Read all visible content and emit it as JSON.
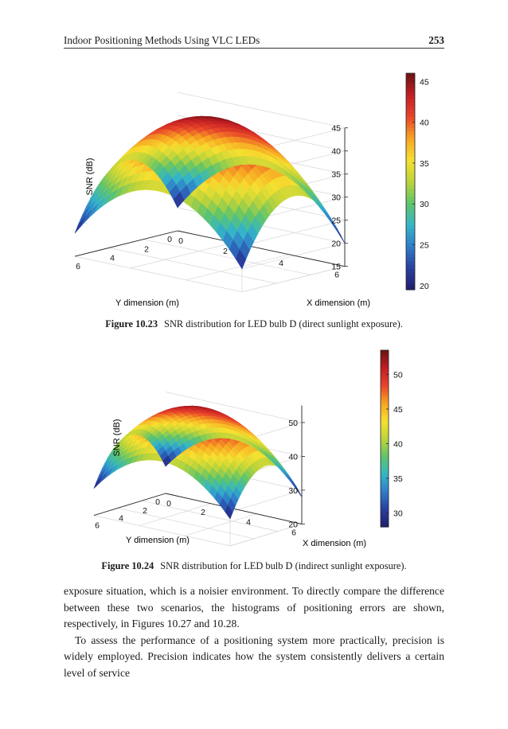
{
  "header": {
    "running_title": "Indoor Positioning Methods Using VLC LEDs",
    "page_number": "253"
  },
  "figures": [
    {
      "caption_label": "Figure 10.23",
      "caption_text": "SNR distribution for LED bulb D (direct sunlight exposure).",
      "chart_data": {
        "type": "surface",
        "zlabel": "SNR (dB)",
        "xlabel": "X dimension (m)",
        "ylabel": "Y dimension (m)",
        "x_ticks": [
          "0",
          "2",
          "4",
          "6"
        ],
        "y_ticks": [
          "0",
          "2",
          "4",
          "6"
        ],
        "z_ticks": [
          "15",
          "20",
          "25",
          "30",
          "35",
          "40",
          "45"
        ],
        "zlim": [
          15,
          45
        ],
        "peak_value": 46,
        "corner_value": 20,
        "colorbar_ticks": [
          "20",
          "25",
          "30",
          "35",
          "40",
          "45"
        ],
        "colorbar_range": [
          19.5,
          46
        ],
        "colormap": [
          "#1f1e6e",
          "#2a3f9e",
          "#2f7bc9",
          "#35b6c7",
          "#5fc46a",
          "#bcd43a",
          "#f6e030",
          "#f7a623",
          "#e8452a",
          "#c31f24",
          "#6b1313"
        ]
      }
    },
    {
      "caption_label": "Figure 10.24",
      "caption_text": "SNR distribution for LED bulb D (indirect sunlight exposure).",
      "chart_data": {
        "type": "surface",
        "zlabel": "SNR (dB)",
        "xlabel": "X dimension (m)",
        "ylabel": "Y dimension (m)",
        "x_ticks": [
          "0",
          "2",
          "4",
          "6"
        ],
        "y_ticks": [
          "0",
          "2",
          "4",
          "6"
        ],
        "z_ticks": [
          "20",
          "30",
          "40",
          "50"
        ],
        "zlim": [
          20,
          55
        ],
        "peak_value": 53,
        "corner_value": 28,
        "colorbar_ticks": [
          "30",
          "35",
          "40",
          "45",
          "50"
        ],
        "colorbar_range": [
          28,
          53.5
        ],
        "colormap": [
          "#1f1e6e",
          "#2a3f9e",
          "#2f7bc9",
          "#35b6c7",
          "#5fc46a",
          "#bcd43a",
          "#f6e030",
          "#f7a623",
          "#e8452a",
          "#c31f24",
          "#6b1313"
        ]
      }
    }
  ],
  "body": {
    "paragraph_1": "exposure situation, which is a noisier environment. To directly compare the difference between these two scenarios, the histograms of positioning errors are shown, respectively, in Figures 10.27 and 10.28.",
    "paragraph_2": "To assess the performance of a positioning system more practically, precision is widely employed. Precision indicates how the system consistently delivers a certain level of service"
  }
}
